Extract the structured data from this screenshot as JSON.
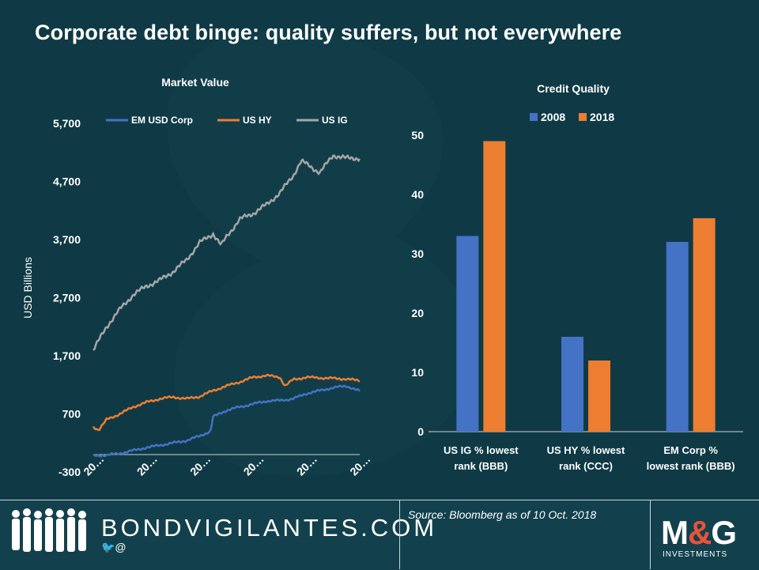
{
  "title": "Corporate debt binge: quality suffers, but not everywhere",
  "chart_data": [
    {
      "type": "line",
      "title": "Market Value",
      "ylabel": "USD Billions",
      "xlabel": "",
      "ylim": [
        -300,
        5700
      ],
      "yticks": [
        "5,700",
        "4,700",
        "3,700",
        "2,700",
        "1,700",
        "700",
        "-300"
      ],
      "xticks": [
        "20…",
        "20…",
        "20…",
        "20…",
        "20…",
        "20…"
      ],
      "legend": [
        "EM USD Corp",
        "US HY",
        "US IG"
      ],
      "legend_position": "top",
      "colors": {
        "EM USD Corp": "#4472c4",
        "US HY": "#ed7d31",
        "US IG": "#a5a5a5"
      },
      "series": [
        {
          "name": "EM USD Corp",
          "x": [
            0,
            0.05,
            0.1,
            0.15,
            0.2,
            0.25,
            0.3,
            0.35,
            0.4,
            0.44,
            0.45,
            0.5,
            0.55,
            0.6,
            0.65,
            0.7,
            0.75,
            0.8,
            0.85,
            0.9,
            0.95,
            1.0
          ],
          "values": [
            -20,
            -10,
            20,
            70,
            120,
            160,
            200,
            240,
            320,
            400,
            650,
            760,
            820,
            870,
            920,
            930,
            960,
            1050,
            1100,
            1150,
            1180,
            1090
          ]
        },
        {
          "name": "US HY",
          "x": [
            0,
            0.02,
            0.05,
            0.1,
            0.15,
            0.2,
            0.25,
            0.3,
            0.35,
            0.4,
            0.45,
            0.5,
            0.55,
            0.6,
            0.65,
            0.7,
            0.72,
            0.75,
            0.8,
            0.85,
            0.9,
            0.95,
            1.0
          ],
          "values": [
            480,
            420,
            600,
            700,
            820,
            900,
            960,
            990,
            960,
            1000,
            1100,
            1180,
            1250,
            1330,
            1360,
            1330,
            1180,
            1290,
            1330,
            1320,
            1310,
            1300,
            1270
          ]
        },
        {
          "name": "US IG",
          "x": [
            0,
            0.05,
            0.1,
            0.15,
            0.2,
            0.25,
            0.3,
            0.35,
            0.4,
            0.45,
            0.48,
            0.5,
            0.55,
            0.6,
            0.65,
            0.7,
            0.75,
            0.78,
            0.8,
            0.85,
            0.9,
            0.95,
            1.0
          ],
          "values": [
            1800,
            2200,
            2500,
            2750,
            2900,
            3000,
            3150,
            3350,
            3650,
            3800,
            3600,
            3750,
            4050,
            4150,
            4300,
            4500,
            4800,
            5050,
            5000,
            4850,
            5150,
            5100,
            5100
          ]
        }
      ]
    },
    {
      "type": "bar",
      "title": "Credit Quality",
      "ylim": [
        0,
        50
      ],
      "yticks": [
        "50",
        "40",
        "30",
        "20",
        "10",
        "0"
      ],
      "categories": [
        "US IG % lowest rank (BBB)",
        "US HY % lowest rank (CCC)",
        "EM Corp % lowest rank (BBB)"
      ],
      "category_lines": [
        [
          "US IG % lowest",
          "rank (BBB)"
        ],
        [
          "US HY % lowest",
          "rank (CCC)"
        ],
        [
          "EM Corp %",
          "lowest rank (BBB)"
        ]
      ],
      "legend_position": "top",
      "series": [
        {
          "name": "2008",
          "color": "#4472c4",
          "values": [
            33,
            16,
            32
          ]
        },
        {
          "name": "2018",
          "color": "#ed7d31",
          "values": [
            49,
            12,
            36
          ]
        }
      ]
    }
  ],
  "footer": {
    "brand": "BONDVIGILANTES.COM",
    "social": "🐦@",
    "source": "Source: Bloomberg as of 10 Oct. 2018",
    "logo_main": "M",
    "logo_amp": "&",
    "logo_end": "G",
    "logo_sub": "INVESTMENTS"
  }
}
